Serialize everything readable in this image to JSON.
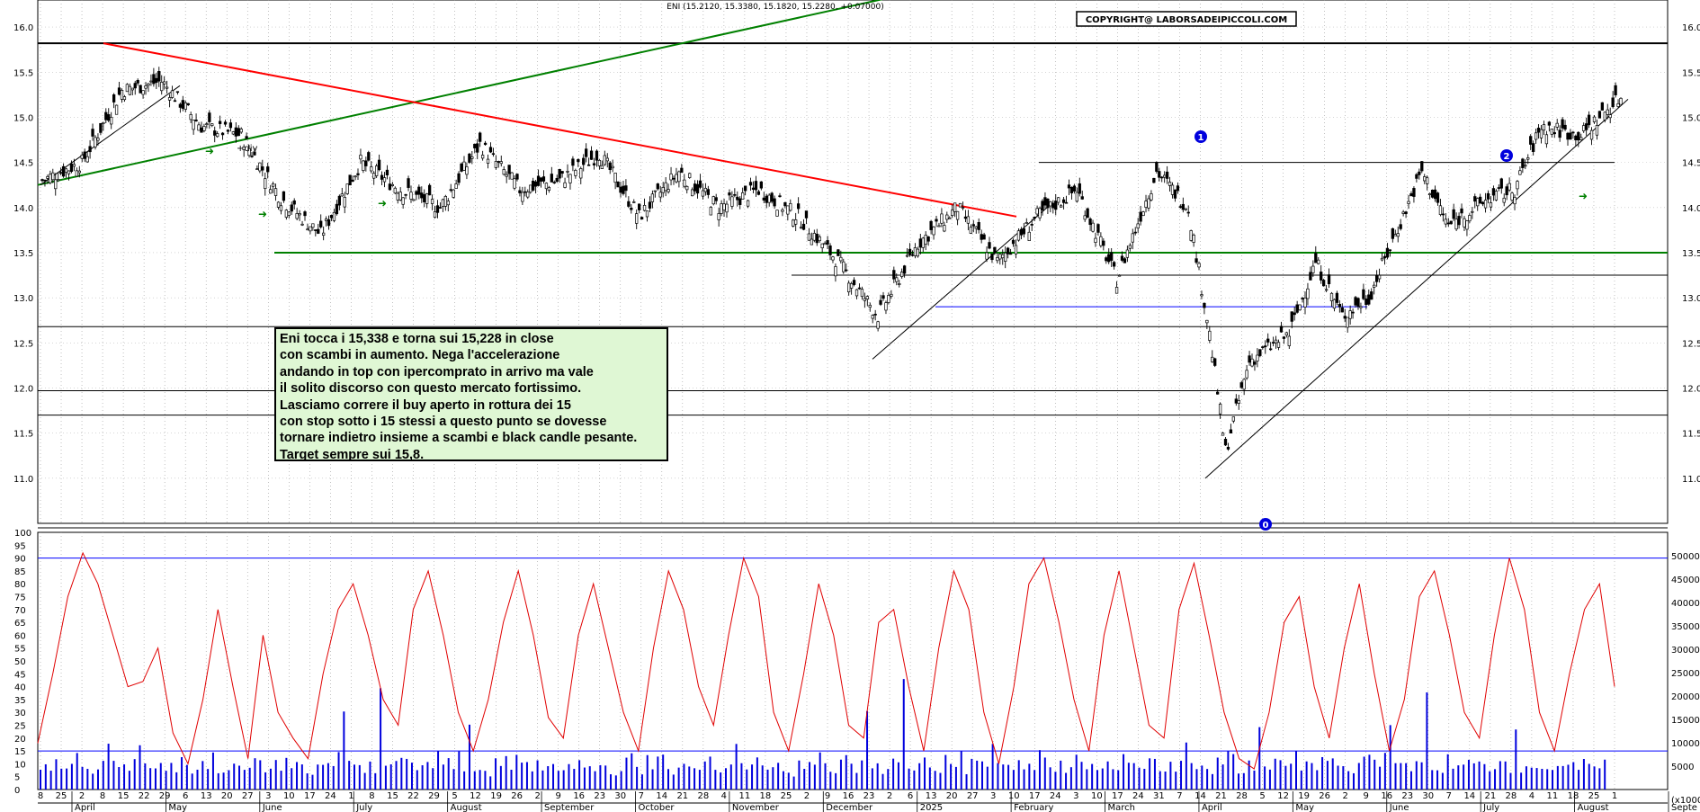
{
  "chart_data": [
    {
      "type": "candlestick",
      "header": "ENI (15.2120, 15.3380, 15.1820, 15.2280, +0.07000)",
      "copyright": "COPYRIGHT@ LABORSADEIPICCOLI.COM",
      "ylim": [
        10.5,
        16.3
      ],
      "yticks": [
        "11.0",
        "11.5",
        "12.0",
        "12.5",
        "13.0",
        "13.5",
        "14.0",
        "14.5",
        "15.0",
        "15.5",
        "16.0"
      ],
      "close_series": [
        {
          "x": 0,
          "y": 14.3
        },
        {
          "x": 15,
          "y": 14.5
        },
        {
          "x": 30,
          "y": 15.3
        },
        {
          "x": 45,
          "y": 15.4
        },
        {
          "x": 60,
          "y": 14.9
        },
        {
          "x": 75,
          "y": 14.8
        },
        {
          "x": 90,
          "y": 14.1
        },
        {
          "x": 105,
          "y": 13.7
        },
        {
          "x": 120,
          "y": 14.5
        },
        {
          "x": 135,
          "y": 14.2
        },
        {
          "x": 150,
          "y": 14.0
        },
        {
          "x": 165,
          "y": 14.7
        },
        {
          "x": 180,
          "y": 14.2
        },
        {
          "x": 195,
          "y": 14.3
        },
        {
          "x": 210,
          "y": 14.6
        },
        {
          "x": 225,
          "y": 13.9
        },
        {
          "x": 240,
          "y": 14.4
        },
        {
          "x": 255,
          "y": 14.0
        },
        {
          "x": 270,
          "y": 14.2
        },
        {
          "x": 285,
          "y": 13.9
        },
        {
          "x": 300,
          "y": 13.4
        },
        {
          "x": 315,
          "y": 12.8
        },
        {
          "x": 330,
          "y": 13.6
        },
        {
          "x": 345,
          "y": 14.0
        },
        {
          "x": 360,
          "y": 13.4
        },
        {
          "x": 375,
          "y": 13.9
        },
        {
          "x": 390,
          "y": 14.2
        },
        {
          "x": 405,
          "y": 13.2
        },
        {
          "x": 420,
          "y": 14.4
        },
        {
          "x": 432,
          "y": 14.0
        },
        {
          "x": 440,
          "y": 12.6
        },
        {
          "x": 446,
          "y": 11.3
        },
        {
          "x": 455,
          "y": 12.3
        },
        {
          "x": 470,
          "y": 12.6
        },
        {
          "x": 480,
          "y": 13.4
        },
        {
          "x": 490,
          "y": 12.8
        },
        {
          "x": 500,
          "y": 13.0
        },
        {
          "x": 510,
          "y": 13.7
        },
        {
          "x": 520,
          "y": 14.4
        },
        {
          "x": 530,
          "y": 13.8
        },
        {
          "x": 545,
          "y": 14.1
        },
        {
          "x": 555,
          "y": 14.2
        },
        {
          "x": 565,
          "y": 14.9
        },
        {
          "x": 580,
          "y": 14.8
        },
        {
          "x": 595,
          "y": 15.228
        }
      ],
      "annotations": [
        "0",
        "1",
        "2",
        "+div"
      ],
      "horizontal_levels": [
        15.82,
        14.5,
        13.5,
        13.25,
        12.9,
        12.68,
        11.97,
        11.7
      ],
      "x_tick_labels": [
        "8",
        "25",
        "2",
        "8",
        "15",
        "22",
        "29",
        "6",
        "13",
        "20",
        "27",
        "3",
        "10",
        "17",
        "24",
        "1",
        "8",
        "15",
        "22",
        "29",
        "5",
        "12",
        "19",
        "26",
        "2",
        "9",
        "16",
        "23",
        "30",
        "7",
        "14",
        "21",
        "28",
        "4",
        "11",
        "18",
        "25",
        "2",
        "9",
        "16",
        "23",
        "2",
        "6",
        "13",
        "20",
        "27",
        "3",
        "10",
        "17",
        "24",
        "3",
        "10",
        "17",
        "24",
        "31",
        "7",
        "14",
        "21",
        "28",
        "5",
        "12",
        "19",
        "26",
        "2",
        "9",
        "16",
        "23",
        "30",
        "7",
        "14",
        "21",
        "28",
        "4",
        "11",
        "18",
        "25",
        "1"
      ],
      "month_labels": [
        "April",
        "May",
        "June",
        "July",
        "August",
        "September",
        "October",
        "November",
        "December",
        "2025",
        "February",
        "March",
        "April",
        "May",
        "June",
        "July",
        "August",
        "Septe"
      ]
    },
    {
      "type": "oscillator",
      "ylim": [
        0,
        100
      ],
      "yticks": [
        "0",
        "5",
        "10",
        "15",
        "20",
        "25",
        "30",
        "35",
        "40",
        "45",
        "50",
        "55",
        "60",
        "65",
        "70",
        "75",
        "80",
        "85",
        "90",
        "95",
        "100"
      ],
      "right_ticks": [
        "5000",
        "10000",
        "15000",
        "20000",
        "25000",
        "30000",
        "35000",
        "40000",
        "45000",
        "50000"
      ],
      "right_unit": "(x1000)",
      "levels": [
        90,
        15
      ],
      "oscillator": [
        18,
        45,
        75,
        92,
        80,
        60,
        40,
        42,
        55,
        22,
        10,
        35,
        70,
        40,
        12,
        60,
        30,
        20,
        12,
        45,
        70,
        80,
        60,
        35,
        25,
        70,
        85,
        60,
        30,
        15,
        35,
        65,
        85,
        60,
        28,
        20,
        60,
        80,
        55,
        30,
        15,
        55,
        85,
        70,
        40,
        25,
        60,
        90,
        75,
        30,
        15,
        45,
        80,
        60,
        25,
        20,
        65,
        70,
        40,
        15,
        55,
        85,
        70,
        30,
        10,
        40,
        80,
        90,
        65,
        35,
        15,
        60,
        85,
        55,
        25,
        20,
        70,
        88,
        60,
        30,
        12,
        8,
        30,
        65,
        75,
        40,
        20,
        55,
        80,
        45,
        15,
        35,
        75,
        85,
        60,
        30,
        20,
        60,
        90,
        70,
        30,
        15,
        45,
        70,
        80,
        40
      ],
      "volume": [
        8,
        9,
        7,
        10,
        11,
        8,
        9,
        12,
        10,
        8,
        7,
        9,
        10,
        14,
        9,
        8,
        12,
        7,
        10,
        18,
        9,
        8,
        11,
        9,
        8,
        10,
        9,
        12,
        11,
        8,
        7,
        10,
        9,
        20,
        8,
        9,
        10,
        13,
        8,
        9,
        12,
        10,
        9,
        8,
        7,
        11,
        9,
        10,
        8,
        12,
        9,
        7,
        8,
        10,
        11,
        9,
        8,
        12,
        25,
        9,
        10,
        8,
        7,
        11,
        9,
        38,
        10,
        8,
        9,
        12,
        10,
        9,
        8,
        11,
        10,
        9,
        14,
        8,
        10,
        9,
        12,
        8,
        22,
        9,
        10,
        8,
        7,
        11,
        9,
        10,
        8,
        12,
        11,
        9,
        8,
        10,
        9,
        8,
        11,
        10
      ]
    }
  ],
  "note": {
    "lines": [
      "Eni tocca i 15,338 e torna sui 15,228 in close",
      "con scambi in aumento. Nega l'accelerazione",
      "andando in top con ipercomprato in arrivo ma vale",
      "il solito discorso con questo mercato fortissimo.",
      "Lasciamo correre il buy aperto in rottura dei 15",
      "con stop sotto i 15 stessi a questo punto se dovesse",
      "tornare indietro insieme a scambi e black candle pesante.",
      "Target sempre sui 15,8."
    ]
  },
  "colors": {
    "candle": "#000000",
    "trend_red": "#ff0000",
    "trend_green": "#008000",
    "level_blue": "#0000ff",
    "oscillator": "#e00000",
    "volume": "#0000dd",
    "note_bg": "#dff7d4"
  }
}
